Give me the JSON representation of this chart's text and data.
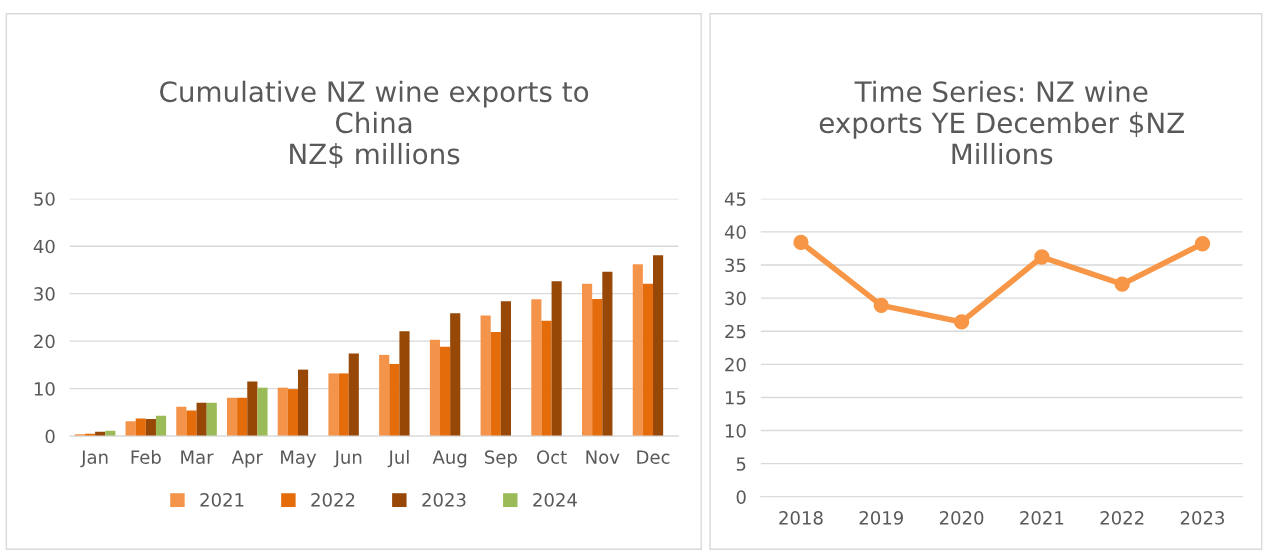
{
  "chart_data": [
    {
      "type": "bar",
      "title": "Cumulative NZ wine exports to\nChina\nNZ$ millions",
      "categories": [
        "Jan",
        "Feb",
        "Mar",
        "Apr",
        "May",
        "Jun",
        "Jul",
        "Aug",
        "Sep",
        "Oct",
        "Nov",
        "Dec"
      ],
      "series": [
        {
          "name": "2021",
          "color": "#f4934a",
          "values": [
            0.4,
            3.1,
            6.2,
            8.1,
            10.2,
            13.2,
            17.1,
            20.3,
            25.4,
            28.8,
            32.1,
            36.2
          ]
        },
        {
          "name": "2022",
          "color": "#e46c0a",
          "values": [
            0.5,
            3.7,
            5.4,
            8.1,
            9.9,
            13.2,
            15.2,
            18.8,
            21.9,
            24.3,
            28.9,
            32.1
          ]
        },
        {
          "name": "2023",
          "color": "#974706",
          "values": [
            0.9,
            3.6,
            7.0,
            11.5,
            14.0,
            17.4,
            22.1,
            25.9,
            28.4,
            32.6,
            34.6,
            38.1
          ]
        },
        {
          "name": "2024",
          "color": "#9bbb59",
          "values": [
            1.1,
            4.3,
            7.0,
            10.2,
            null,
            null,
            null,
            null,
            null,
            null,
            null,
            null
          ]
        }
      ],
      "ylim": [
        0,
        50
      ],
      "yticks": [
        0,
        10,
        20,
        30,
        40,
        50
      ],
      "grid": "y",
      "legend": "bottom"
    },
    {
      "type": "line",
      "title": "Time Series: NZ wine\nexports YE December $NZ\nMillions",
      "categories": [
        "2018",
        "2019",
        "2020",
        "2021",
        "2022",
        "2023"
      ],
      "series": [
        {
          "color": "#f79646",
          "values": [
            38.4,
            28.9,
            26.4,
            36.2,
            32.1,
            38.2
          ]
        }
      ],
      "ylim": [
        0,
        45
      ],
      "yticks": [
        0,
        5,
        10,
        15,
        20,
        25,
        30,
        35,
        40,
        45
      ],
      "grid": "y",
      "marker": "circle"
    }
  ]
}
